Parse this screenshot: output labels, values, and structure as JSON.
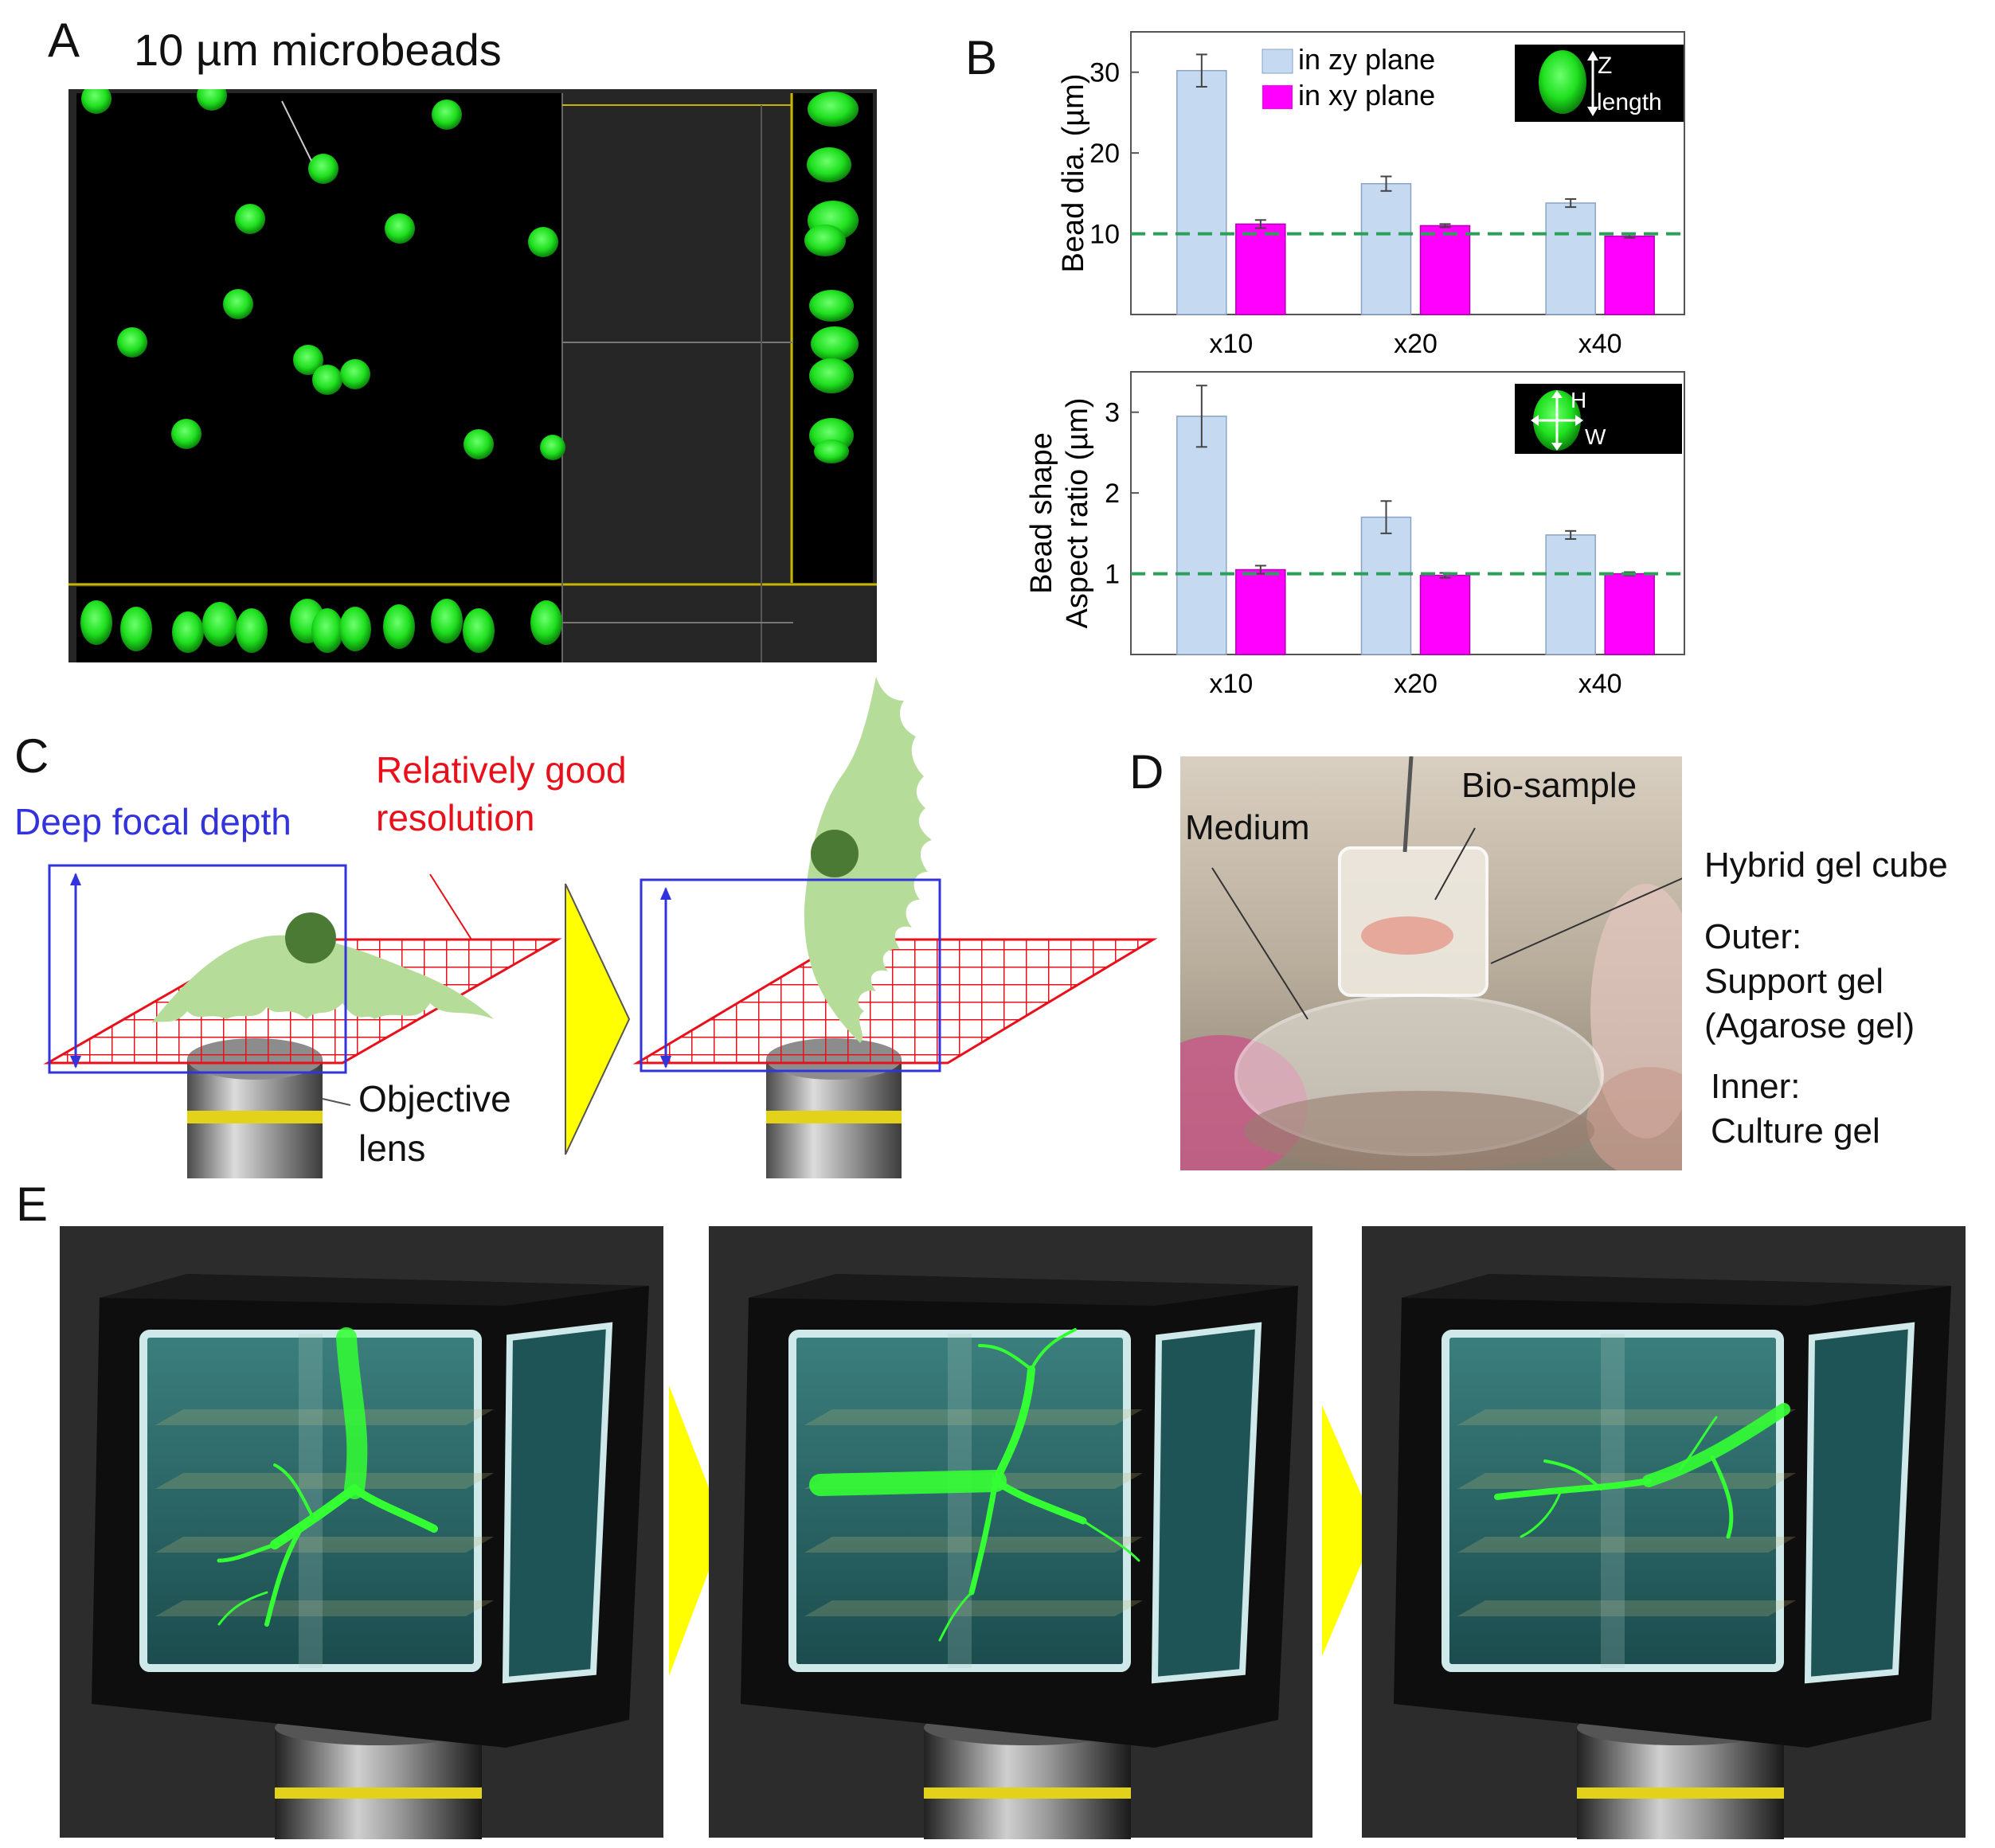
{
  "panels": {
    "a": {
      "label": "A",
      "title": "10 µm microbeads"
    },
    "b": {
      "label": "B",
      "legend": {
        "zy": "in zy plane",
        "xy": "in xy plane"
      },
      "inset1": {
        "z": "Z",
        "length": "length"
      },
      "inset2": {
        "h": "H",
        "w": "W"
      }
    },
    "c": {
      "label": "C",
      "deep_focal": "Deep focal depth",
      "res_line1": "Relatively good",
      "res_line2": "resolution",
      "obj_line1": "Objective",
      "obj_line2": "lens"
    },
    "d": {
      "label": "D",
      "medium": "Medium",
      "biosample": "Bio-sample",
      "hybrid": "Hybrid gel cube",
      "outer": "Outer:",
      "support": "Support gel",
      "agarose": "(Agarose gel)",
      "inner": "Inner:",
      "culture": "Culture gel"
    },
    "e": {
      "label": "E"
    }
  },
  "colors": {
    "zy": "#c5d9f1",
    "xy": "#ff00ff",
    "dash": "#2ca05a",
    "bead": "#22dd22",
    "arrow": "#ffff00",
    "grid": "#e8101a",
    "box": "#3333dd",
    "cell": "#b6dc9a"
  },
  "chart_data": [
    {
      "type": "bar",
      "categories": [
        "x10",
        "x20",
        "x40"
      ],
      "ylabel": "Bead dia. (µm)",
      "ylim": [
        0,
        35
      ],
      "yticks": [
        10,
        20,
        30
      ],
      "reference_line": 10,
      "series": [
        {
          "name": "in zy plane",
          "values": [
            30.2,
            16.2,
            13.8
          ],
          "errors": [
            2.0,
            0.9,
            0.5
          ]
        },
        {
          "name": "in xy plane",
          "values": [
            11.2,
            11.0,
            9.7
          ],
          "errors": [
            0.5,
            0.2,
            0.2
          ]
        }
      ]
    },
    {
      "type": "bar",
      "categories": [
        "x10",
        "x20",
        "x40"
      ],
      "ylabel_line1": "Bead shape",
      "ylabel_line2": "Aspect ratio (µm)",
      "ylim": [
        0,
        3.5
      ],
      "yticks": [
        1,
        2,
        3
      ],
      "reference_line": 1,
      "series": [
        {
          "name": "in zy plane",
          "values": [
            2.95,
            1.7,
            1.48
          ],
          "errors": [
            0.38,
            0.2,
            0.05
          ]
        },
        {
          "name": "in xy plane",
          "values": [
            1.05,
            0.98,
            1.0
          ],
          "errors": [
            0.05,
            0.03,
            0.02
          ]
        }
      ]
    }
  ]
}
